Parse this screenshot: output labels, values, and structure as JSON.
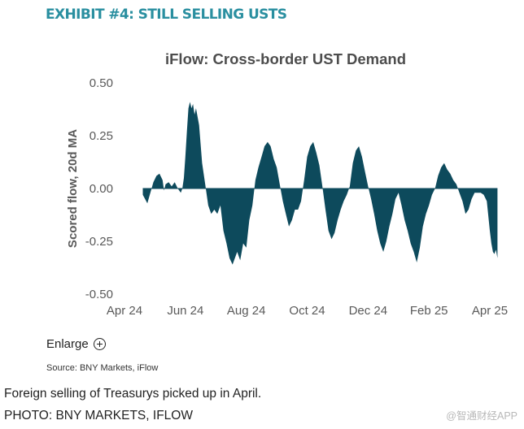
{
  "exhibit_title": "EXHIBIT #4: STILL SELLING USTS",
  "enlarge_label": "Enlarge",
  "source": "Source:  BNY Markets, iFlow",
  "caption": "Foreign selling of Treasurys picked up in April.",
  "credit": "PHOTO: BNY MARKETS, IFLOW",
  "watermark": "@智通财经APP",
  "colors": {
    "exhibit": "#2a8fa0",
    "area": "#0d4a5c",
    "axis_text": "#595959"
  },
  "chart_data": {
    "type": "area",
    "title": "iFlow: Cross-border UST Demand",
    "xlabel": "",
    "ylabel": "Scored flow, 20d MA",
    "ylim": [
      -0.5,
      0.5
    ],
    "yticks": [
      0.5,
      0.25,
      0.0,
      -0.25,
      -0.5
    ],
    "ytick_labels": [
      "0.50",
      "0.25",
      "0.00",
      "-0.25",
      "-0.50"
    ],
    "xlim": [
      0,
      12.4
    ],
    "x_ticks": [
      {
        "label": "Apr 24",
        "x": 0
      },
      {
        "label": "Jun 24",
        "x": 2
      },
      {
        "label": "Aug 24",
        "x": 4
      },
      {
        "label": "Oct 24",
        "x": 6
      },
      {
        "label": "Dec 24",
        "x": 8
      },
      {
        "label": "Feb 25",
        "x": 10
      },
      {
        "label": "Apr 25",
        "x": 12
      }
    ],
    "series": [
      {
        "name": "Scored flow, 20d MA",
        "x": [
          0.6,
          0.75,
          0.85,
          0.95,
          1.05,
          1.15,
          1.25,
          1.3,
          1.35,
          1.45,
          1.55,
          1.65,
          1.75,
          1.85,
          1.9,
          1.95,
          2.0,
          2.05,
          2.1,
          2.15,
          2.2,
          2.25,
          2.3,
          2.35,
          2.45,
          2.55,
          2.65,
          2.75,
          2.85,
          2.95,
          3.05,
          3.15,
          3.25,
          3.35,
          3.45,
          3.55,
          3.7,
          3.8,
          3.9,
          4.0,
          4.1,
          4.2,
          4.3,
          4.4,
          4.5,
          4.6,
          4.7,
          4.8,
          4.9,
          5.0,
          5.1,
          5.2,
          5.3,
          5.4,
          5.5,
          5.6,
          5.7,
          5.8,
          5.9,
          6.0,
          6.1,
          6.2,
          6.3,
          6.4,
          6.5,
          6.6,
          6.7,
          6.8,
          6.9,
          7.0,
          7.1,
          7.2,
          7.3,
          7.4,
          7.5,
          7.6,
          7.7,
          7.8,
          7.9,
          8.0,
          8.1,
          8.2,
          8.3,
          8.4,
          8.5,
          8.6,
          8.7,
          8.8,
          8.9,
          9.0,
          9.1,
          9.2,
          9.3,
          9.4,
          9.5,
          9.6,
          9.7,
          9.8,
          9.9,
          10.0,
          10.1,
          10.2,
          10.3,
          10.4,
          10.5,
          10.6,
          10.7,
          10.8,
          10.9,
          11.0,
          11.1,
          11.2,
          11.3,
          11.4,
          11.5,
          11.6,
          11.7,
          11.8,
          11.9,
          12.0,
          12.05,
          12.1,
          12.15,
          12.2,
          12.25
        ],
        "values": [
          -0.03,
          -0.07,
          -0.02,
          0.03,
          0.06,
          0.07,
          0.04,
          -0.01,
          0.02,
          0.03,
          0.01,
          0.03,
          0.0,
          -0.02,
          0.0,
          0.05,
          0.15,
          0.27,
          0.38,
          0.41,
          0.38,
          0.4,
          0.35,
          0.38,
          0.3,
          0.12,
          0.02,
          -0.08,
          -0.12,
          -0.1,
          -0.12,
          -0.08,
          -0.2,
          -0.26,
          -0.33,
          -0.36,
          -0.3,
          -0.34,
          -0.26,
          -0.28,
          -0.15,
          -0.08,
          0.04,
          0.1,
          0.15,
          0.2,
          0.22,
          0.2,
          0.14,
          0.1,
          0.02,
          -0.06,
          -0.12,
          -0.18,
          -0.15,
          -0.1,
          -0.1,
          -0.06,
          0.04,
          0.15,
          0.2,
          0.22,
          0.17,
          0.11,
          0.01,
          -0.1,
          -0.2,
          -0.24,
          -0.21,
          -0.15,
          -0.1,
          -0.06,
          -0.03,
          0.01,
          0.12,
          0.18,
          0.2,
          0.15,
          0.08,
          0.01,
          -0.05,
          -0.12,
          -0.2,
          -0.26,
          -0.3,
          -0.25,
          -0.18,
          -0.12,
          -0.05,
          -0.02,
          -0.08,
          -0.15,
          -0.2,
          -0.26,
          -0.3,
          -0.35,
          -0.28,
          -0.18,
          -0.12,
          -0.08,
          -0.03,
          0.0,
          0.06,
          0.1,
          0.12,
          0.09,
          0.07,
          0.04,
          0.02,
          -0.02,
          -0.06,
          -0.12,
          -0.1,
          -0.05,
          -0.02,
          -0.02,
          -0.02,
          -0.03,
          -0.06,
          -0.2,
          -0.26,
          -0.3,
          -0.31,
          -0.29,
          -0.33
        ]
      }
    ]
  }
}
